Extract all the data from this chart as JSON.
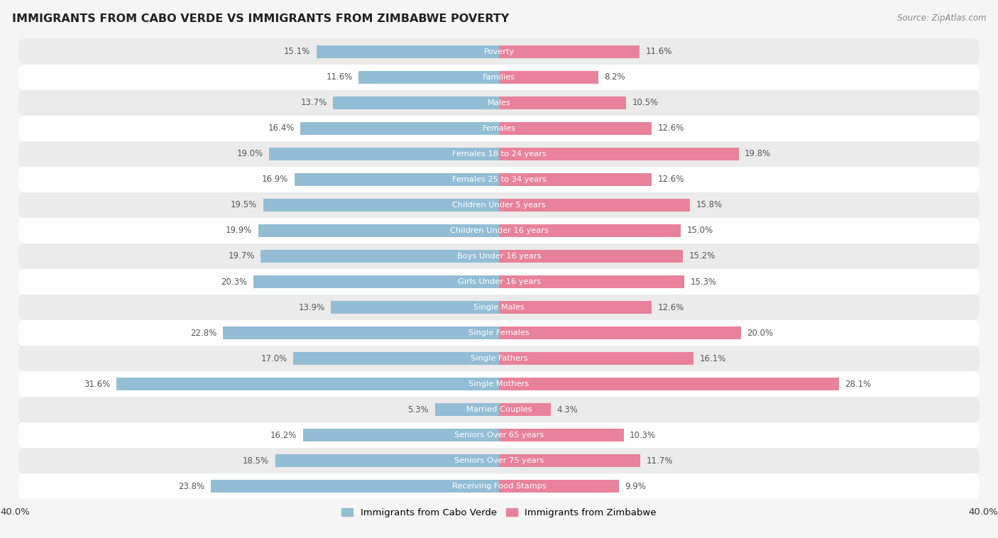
{
  "title": "IMMIGRANTS FROM CABO VERDE VS IMMIGRANTS FROM ZIMBABWE POVERTY",
  "source": "Source: ZipAtlas.com",
  "categories": [
    "Poverty",
    "Families",
    "Males",
    "Females",
    "Females 18 to 24 years",
    "Females 25 to 34 years",
    "Children Under 5 years",
    "Children Under 16 years",
    "Boys Under 16 years",
    "Girls Under 16 years",
    "Single Males",
    "Single Females",
    "Single Fathers",
    "Single Mothers",
    "Married Couples",
    "Seniors Over 65 years",
    "Seniors Over 75 years",
    "Receiving Food Stamps"
  ],
  "cabo_verde": [
    15.1,
    11.6,
    13.7,
    16.4,
    19.0,
    16.9,
    19.5,
    19.9,
    19.7,
    20.3,
    13.9,
    22.8,
    17.0,
    31.6,
    5.3,
    16.2,
    18.5,
    23.8
  ],
  "zimbabwe": [
    11.6,
    8.2,
    10.5,
    12.6,
    19.8,
    12.6,
    15.8,
    15.0,
    15.2,
    15.3,
    12.6,
    20.0,
    16.1,
    28.1,
    4.3,
    10.3,
    11.7,
    9.9
  ],
  "cabo_verde_color": "#93bdd4",
  "zimbabwe_color": "#e8829a",
  "cabo_verde_label": "Immigrants from Cabo Verde",
  "zimbabwe_label": "Immigrants from Zimbabwe",
  "xlim": 40.0,
  "background_color": "#f5f5f5",
  "row_color_light": "#ffffff",
  "row_color_dark": "#ebebeb",
  "label_color": "#555555",
  "title_color": "#222222",
  "source_color": "#888888"
}
